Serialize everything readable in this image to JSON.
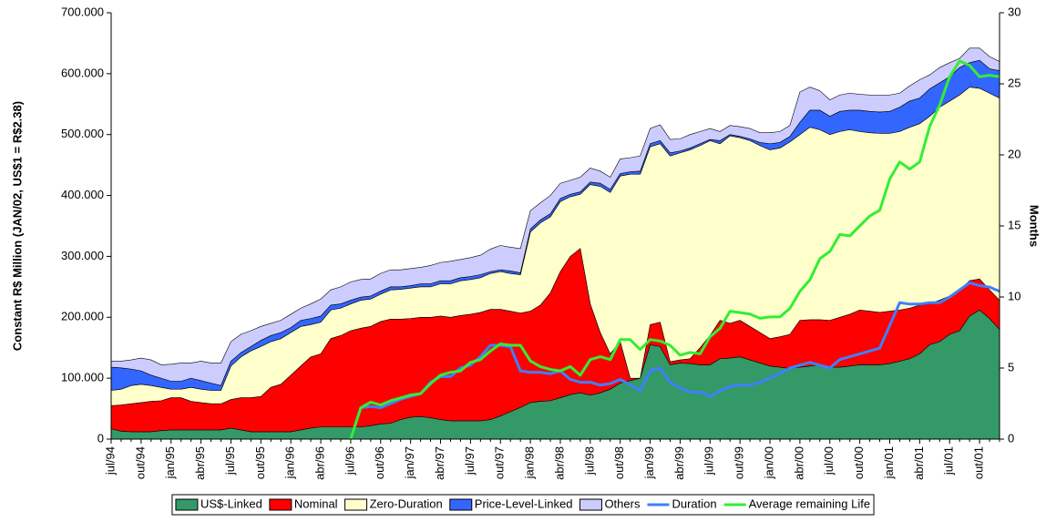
{
  "chart_data": {
    "type": "stacked-area-line",
    "y_label": "Constant R$ Million (JAN/02, US$1 = R$2.38)",
    "y2_label": "Months",
    "categories": [
      "jul/94",
      null,
      null,
      "out/94",
      null,
      null,
      "jan/95",
      null,
      null,
      "abr/95",
      null,
      null,
      "jul/95",
      null,
      null,
      "out/95",
      null,
      null,
      "jan/96",
      null,
      null,
      "abr/96",
      null,
      null,
      "jul/96",
      null,
      null,
      "out/96",
      null,
      null,
      "jan/97",
      null,
      null,
      "abr/97",
      null,
      null,
      "jul/97",
      null,
      null,
      "out/97",
      null,
      null,
      "jan/98",
      null,
      null,
      "abr/98",
      null,
      null,
      "jul/98",
      null,
      null,
      "out/98",
      null,
      null,
      "jan/99",
      null,
      null,
      "abr/99",
      null,
      null,
      "jul/99",
      null,
      null,
      "out/99",
      null,
      null,
      "jan/00",
      null,
      null,
      "abr/00",
      null,
      null,
      "jul/00",
      null,
      null,
      "out/00",
      null,
      null,
      "jan/01",
      null,
      null,
      "abr/01",
      null,
      null,
      "jul/01",
      null,
      null,
      "out/01",
      null,
      null
    ],
    "ylim": [
      0,
      700000
    ],
    "yticks": [
      0,
      {
        "value": 100000,
        "label": "100.000"
      },
      {
        "value": 200000,
        "label": "200.000"
      },
      {
        "value": 300000,
        "label": "300.000"
      },
      {
        "value": 400000,
        "label": "400.000"
      },
      {
        "value": 500000,
        "label": "500.000"
      },
      {
        "value": 600000,
        "label": "600.000"
      },
      {
        "value": 700000,
        "label": "700.000"
      }
    ],
    "y2lim": [
      0,
      30
    ],
    "y2ticks": [
      0,
      5,
      10,
      15,
      20,
      25,
      30
    ],
    "series": [
      {
        "name": "US$-Linked",
        "kind": "area",
        "color": "#339966",
        "values": [
          17000,
          13000,
          12000,
          12000,
          12000,
          14000,
          15000,
          15000,
          15000,
          15000,
          15000,
          15000,
          18000,
          15000,
          12000,
          12000,
          12000,
          12000,
          12000,
          15000,
          18000,
          20000,
          20000,
          20000,
          20000,
          20000,
          22000,
          25000,
          26000,
          32000,
          36000,
          37000,
          35000,
          32000,
          30000,
          30000,
          30000,
          30000,
          32000,
          38000,
          45000,
          52000,
          60000,
          62000,
          63000,
          68000,
          73000,
          76000,
          72000,
          76000,
          82000,
          92000,
          96000,
          100000,
          155000,
          152000,
          122000,
          125000,
          124000,
          122000,
          122000,
          132000,
          133000,
          135000,
          130000,
          125000,
          120000,
          118000,
          116000,
          118000,
          120000,
          122000,
          118000,
          118000,
          120000,
          122000,
          122000,
          122000,
          124000,
          128000,
          132000,
          140000,
          155000,
          160000,
          172000,
          178000,
          202000,
          212000,
          198000,
          180000
        ]
      },
      {
        "name": "Nominal",
        "kind": "area",
        "color": "#ff0000",
        "values": [
          38000,
          43000,
          46000,
          48000,
          50000,
          49000,
          53000,
          53000,
          47000,
          45000,
          43000,
          43000,
          47000,
          53000,
          56000,
          58000,
          73000,
          78000,
          93000,
          105000,
          117000,
          120000,
          145000,
          150000,
          158000,
          162000,
          163000,
          168000,
          171000,
          165000,
          162000,
          163000,
          165000,
          170000,
          170000,
          173000,
          175000,
          178000,
          181000,
          175000,
          165000,
          155000,
          150000,
          158000,
          177000,
          207000,
          227000,
          237000,
          150000,
          99000,
          58000,
          68000,
          4000,
          0,
          33000,
          40000,
          5000,
          5000,
          8000,
          28000,
          48000,
          63000,
          57000,
          60000,
          55000,
          50000,
          45000,
          50000,
          56000,
          77000,
          76000,
          74000,
          77000,
          82000,
          85000,
          90000,
          88000,
          86000,
          86000,
          84000,
          83000,
          80000,
          67000,
          68000,
          63000,
          67000,
          58000,
          51000,
          47000,
          48000
        ]
      },
      {
        "name": "Zero-Duration",
        "kind": "area",
        "color": "#ffffcc",
        "values": [
          25000,
          26000,
          30000,
          30000,
          26000,
          22000,
          14000,
          14000,
          23000,
          22000,
          22000,
          22000,
          55000,
          67000,
          77000,
          82000,
          75000,
          75000,
          70000,
          65000,
          53000,
          52000,
          47000,
          45000,
          44000,
          46000,
          45000,
          45000,
          48000,
          49000,
          50000,
          50000,
          50000,
          53000,
          55000,
          57000,
          57000,
          57000,
          59000,
          62000,
          62000,
          63000,
          130000,
          135000,
          125000,
          115000,
          98000,
          89000,
          196000,
          240000,
          265000,
          272000,
          335000,
          335000,
          292000,
          293000,
          338000,
          340000,
          343000,
          332000,
          320000,
          290000,
          308000,
          300000,
          305000,
          307000,
          310000,
          310000,
          316000,
          305000,
          316000,
          312000,
          305000,
          305000,
          303000,
          293000,
          293000,
          294000,
          292000,
          293000,
          297000,
          298000,
          308000,
          317000,
          320000,
          320000,
          318000,
          313000,
          323000,
          332000
        ]
      },
      {
        "name": "Price-Level-Linked",
        "kind": "area",
        "color": "#3366ff",
        "values": [
          38000,
          35000,
          27000,
          22000,
          17000,
          15000,
          13000,
          13000,
          15000,
          14000,
          12000,
          8000,
          8000,
          7000,
          7000,
          10000,
          10000,
          10000,
          8000,
          10000,
          10000,
          10000,
          8000,
          7000,
          6000,
          5000,
          5000,
          5000,
          5000,
          4000,
          4000,
          5000,
          5000,
          5000,
          5000,
          5000,
          5000,
          5000,
          3000,
          3000,
          4000,
          3000,
          5000,
          5000,
          5000,
          5000,
          4000,
          4000,
          4000,
          5000,
          5000,
          4000,
          4000,
          5000,
          5000,
          5000,
          5000,
          3000,
          3000,
          3000,
          2000,
          5000,
          2000,
          2000,
          3000,
          5000,
          10000,
          9000,
          9000,
          20000,
          28000,
          32000,
          30000,
          33000,
          32000,
          35000,
          35000,
          35000,
          36000,
          40000,
          43000,
          42000,
          45000,
          40000,
          40000,
          45000,
          40000,
          46000,
          40000,
          45000
        ]
      },
      {
        "name": "Others",
        "kind": "area",
        "color": "#ccccff",
        "values": [
          10000,
          11000,
          15000,
          21000,
          25000,
          22000,
          28000,
          30000,
          25000,
          32000,
          33000,
          37000,
          32000,
          30000,
          26000,
          23000,
          20000,
          20000,
          22000,
          20000,
          24000,
          28000,
          25000,
          28000,
          30000,
          29000,
          28000,
          29000,
          28000,
          28000,
          28000,
          27000,
          30000,
          30000,
          32000,
          30000,
          31000,
          32000,
          37000,
          40000,
          39000,
          40000,
          30000,
          28000,
          30000,
          25000,
          23000,
          24000,
          23000,
          20000,
          20000,
          24000,
          23000,
          25000,
          25000,
          26000,
          22000,
          20000,
          22000,
          20000,
          18000,
          15000,
          15000,
          16000,
          17000,
          16000,
          18000,
          18000,
          18000,
          50000,
          38000,
          32000,
          27000,
          27000,
          28000,
          26000,
          27000,
          28000,
          27000,
          23000,
          25000,
          30000,
          23000,
          25000,
          23000,
          15000,
          24000,
          20000,
          20000,
          15000
        ]
      },
      {
        "name": "Duration",
        "kind": "line",
        "axis": "y2",
        "color": "#3f7fff",
        "values": [
          null,
          null,
          null,
          null,
          null,
          null,
          null,
          null,
          null,
          null,
          null,
          null,
          null,
          null,
          null,
          null,
          null,
          null,
          null,
          null,
          null,
          null,
          null,
          null,
          0,
          2.2,
          2.3,
          2.2,
          2.5,
          2.8,
          3.0,
          3.2,
          4.0,
          4.4,
          4.4,
          5.0,
          5.2,
          5.8,
          6.6,
          6.6,
          6.5,
          4.8,
          4.7,
          4.7,
          4.6,
          4.8,
          4.2,
          4.0,
          4.0,
          3.8,
          3.9,
          4.2,
          3.8,
          3.4,
          4.8,
          5.0,
          4.0,
          3.6,
          3.3,
          3.3,
          3.0,
          3.4,
          3.7,
          3.8,
          3.8,
          4.0,
          4.3,
          4.6,
          5.0,
          5.2,
          5.4,
          5.2,
          5.0,
          5.6,
          5.8,
          6.0,
          6.2,
          6.4,
          8.0,
          9.6,
          9.5,
          9.5,
          9.6,
          9.6,
          10.0,
          10.5,
          11.0,
          10.8,
          10.7,
          10.4
        ]
      },
      {
        "name": "Average remaining Life",
        "kind": "line",
        "axis": "y2",
        "color": "#33ee33",
        "values": [
          null,
          null,
          null,
          null,
          null,
          null,
          null,
          null,
          null,
          null,
          null,
          null,
          null,
          null,
          null,
          null,
          null,
          null,
          null,
          null,
          null,
          null,
          null,
          null,
          0,
          2.2,
          2.6,
          2.4,
          2.7,
          2.9,
          3.1,
          3.2,
          3.9,
          4.5,
          4.7,
          4.8,
          5.4,
          5.6,
          6.2,
          6.7,
          6.6,
          6.6,
          5.5,
          5.1,
          4.9,
          4.8,
          5.1,
          4.5,
          5.6,
          5.8,
          5.6,
          7.0,
          7.0,
          6.3,
          7.0,
          6.9,
          6.6,
          5.9,
          6.1,
          6.0,
          7.2,
          7.8,
          9.0,
          8.9,
          8.8,
          8.5,
          8.6,
          8.6,
          9.2,
          10.4,
          11.2,
          12.7,
          13.2,
          14.4,
          14.3,
          15.0,
          15.7,
          16.1,
          18.3,
          19.5,
          19.0,
          19.5,
          22.0,
          23.5,
          25.5,
          26.6,
          26.3,
          25.5,
          25.6,
          25.5
        ]
      }
    ],
    "legend": "bottom"
  }
}
